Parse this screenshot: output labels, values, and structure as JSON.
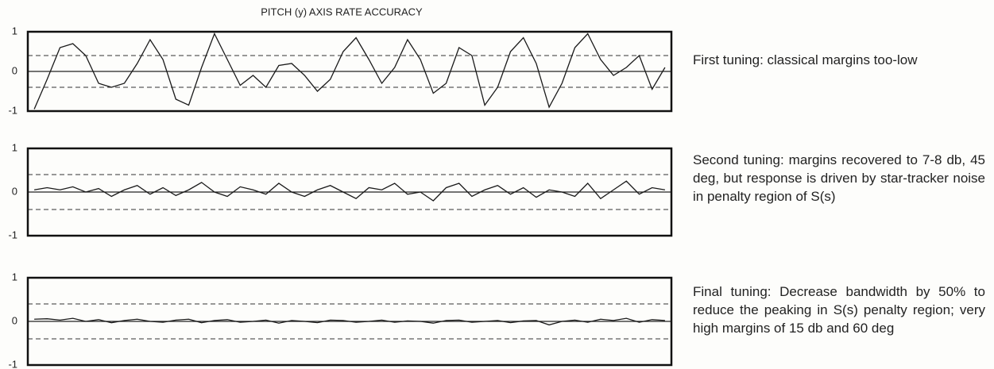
{
  "chart_data": [
    {
      "type": "line",
      "title": "PITCH (y) AXIS RATE ACCURACY",
      "categories": [
        null,
        null,
        null,
        null,
        null,
        null,
        null,
        null,
        null,
        null,
        null,
        null,
        null,
        null,
        null,
        null,
        null,
        null,
        null,
        null,
        null,
        null,
        null,
        null,
        null,
        null,
        null,
        null,
        null,
        null,
        null,
        null,
        null,
        null,
        null,
        null,
        null,
        null,
        null,
        null,
        null,
        null,
        null,
        null,
        null,
        null,
        null,
        null,
        null,
        null
      ],
      "values": [
        -0.95,
        -0.2,
        0.6,
        0.7,
        0.4,
        -0.3,
        -0.4,
        -0.3,
        0.2,
        0.8,
        0.3,
        -0.7,
        -0.85,
        0.1,
        0.95,
        0.3,
        -0.35,
        -0.1,
        -0.4,
        0.15,
        0.2,
        -0.1,
        -0.5,
        -0.2,
        0.5,
        0.85,
        0.3,
        -0.3,
        0.1,
        0.8,
        0.3,
        -0.55,
        -0.3,
        0.6,
        0.4,
        -0.85,
        -0.4,
        0.5,
        0.85,
        0.2,
        -0.9,
        -0.3,
        0.6,
        0.95,
        0.3,
        -0.1,
        0.1,
        0.4,
        -0.45,
        0.1
      ],
      "color": "#1a1a1a",
      "ylim": [
        -1,
        1
      ],
      "yticks": [
        -1,
        0,
        1
      ],
      "reference_lines": [
        -0.4,
        0.4
      ],
      "grid": true,
      "annotation": "First tuning: classical margins too-low"
    },
    {
      "type": "line",
      "categories": [
        null,
        null,
        null,
        null,
        null,
        null,
        null,
        null,
        null,
        null,
        null,
        null,
        null,
        null,
        null,
        null,
        null,
        null,
        null,
        null,
        null,
        null,
        null,
        null,
        null,
        null,
        null,
        null,
        null,
        null,
        null,
        null,
        null,
        null,
        null,
        null,
        null,
        null,
        null,
        null,
        null,
        null,
        null,
        null,
        null,
        null,
        null,
        null,
        null,
        null
      ],
      "values": [
        0.05,
        0.1,
        0.05,
        0.12,
        0.0,
        0.08,
        -0.1,
        0.05,
        0.15,
        -0.05,
        0.1,
        -0.08,
        0.05,
        0.22,
        0.0,
        -0.1,
        0.12,
        0.05,
        -0.05,
        0.2,
        0.0,
        -0.1,
        0.05,
        0.15,
        0.0,
        -0.15,
        0.1,
        0.05,
        0.2,
        -0.05,
        0.0,
        -0.2,
        0.1,
        0.2,
        -0.1,
        0.05,
        0.15,
        -0.05,
        0.1,
        -0.12,
        0.05,
        0.0,
        -0.1,
        0.2,
        -0.15,
        0.05,
        0.25,
        -0.05,
        0.1,
        0.05
      ],
      "color": "#1a1a1a",
      "ylim": [
        -1,
        1
      ],
      "yticks": [
        -1,
        0,
        1
      ],
      "reference_lines": [
        -0.4,
        0.4
      ],
      "grid": true,
      "annotation": "Second tuning: margins recovered to 7-8 db, 45 deg, but response is driven by star-tracker noise in penalty region of S(s)"
    },
    {
      "type": "line",
      "categories": [
        null,
        null,
        null,
        null,
        null,
        null,
        null,
        null,
        null,
        null,
        null,
        null,
        null,
        null,
        null,
        null,
        null,
        null,
        null,
        null,
        null,
        null,
        null,
        null,
        null,
        null,
        null,
        null,
        null,
        null,
        null,
        null,
        null,
        null,
        null,
        null,
        null,
        null,
        null,
        null,
        null,
        null,
        null,
        null,
        null,
        null,
        null,
        null,
        null,
        null
      ],
      "values": [
        0.05,
        0.06,
        0.03,
        0.07,
        0.0,
        0.04,
        -0.03,
        0.02,
        0.05,
        0.0,
        -0.02,
        0.03,
        0.05,
        -0.03,
        0.02,
        0.04,
        -0.02,
        0.0,
        0.03,
        -0.04,
        0.02,
        0.0,
        -0.03,
        0.03,
        0.02,
        -0.02,
        0.0,
        0.03,
        -0.02,
        0.01,
        0.0,
        -0.04,
        0.02,
        0.03,
        -0.02,
        0.0,
        0.02,
        -0.03,
        0.01,
        0.02,
        -0.08,
        0.0,
        0.03,
        -0.02,
        0.05,
        0.02,
        0.07,
        -0.02,
        0.04,
        0.02
      ],
      "color": "#1a1a1a",
      "ylim": [
        -1,
        1
      ],
      "yticks": [
        -1,
        0,
        1
      ],
      "reference_lines": [
        -0.4,
        0.4
      ],
      "grid": true,
      "annotation": "Final tuning: Decrease bandwidth by 50% to reduce the peaking in S(s) penalty region; very high margins of 15 db and 60 deg"
    }
  ]
}
